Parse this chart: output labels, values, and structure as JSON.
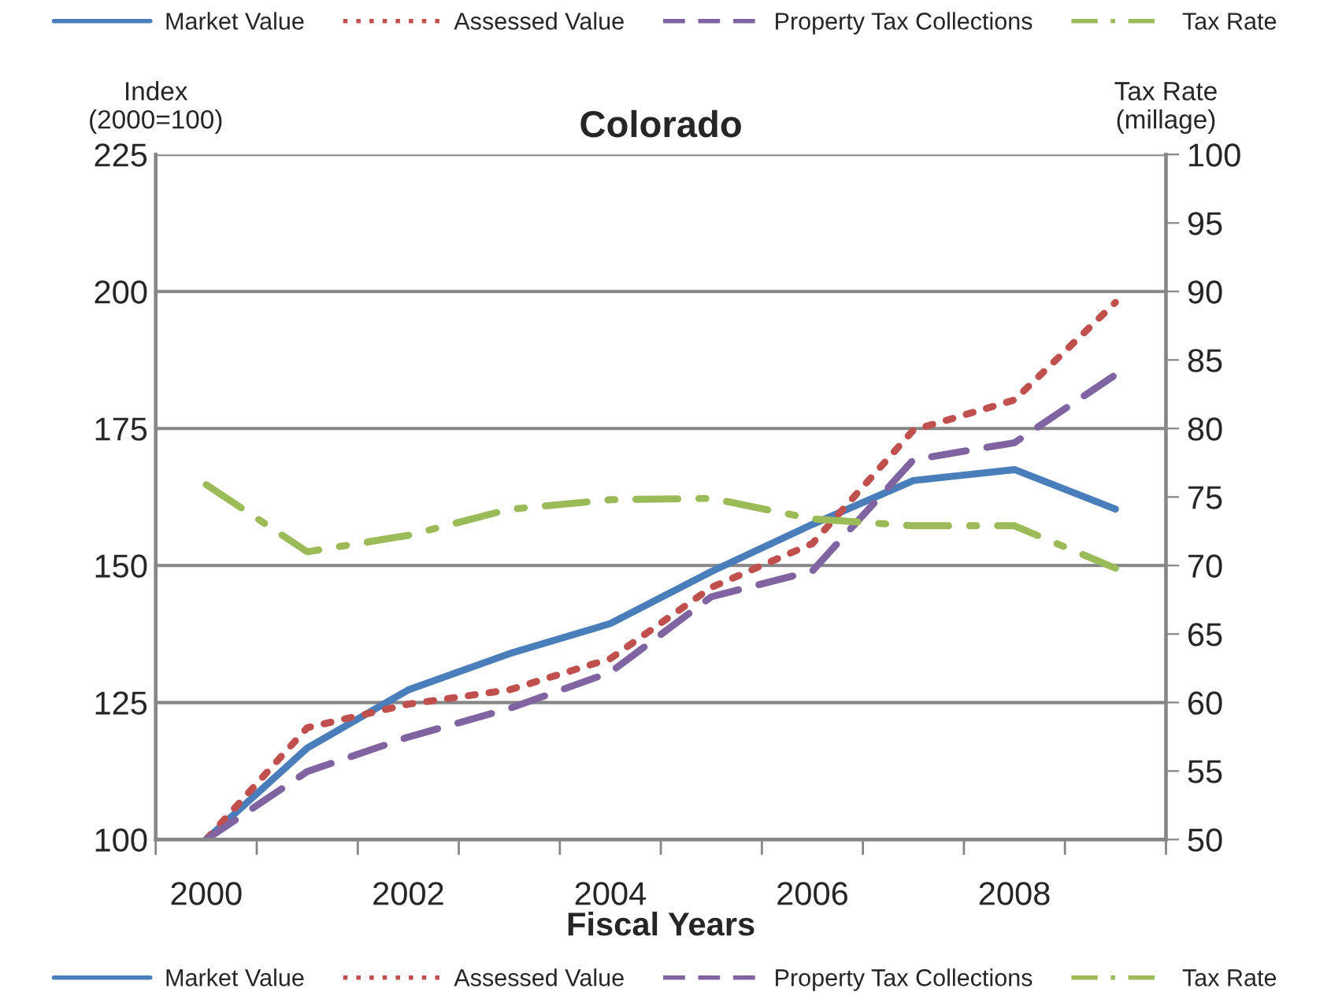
{
  "chart_data": {
    "type": "line",
    "title": "Colorado",
    "xlabel": "Fiscal Years",
    "ylabel": "Index\n(2000=100)",
    "y2label": "Tax Rate\n(millage)",
    "x": [
      2000,
      2001,
      2002,
      2003,
      2004,
      2005,
      2006,
      2007,
      2008,
      2009
    ],
    "series": [
      {
        "name": "Market Value",
        "color": "#4a7ebb",
        "line_style": "solid",
        "values": [
          100,
          116.7,
          127.3,
          133.9,
          139.4,
          148.9,
          157.5,
          165.5,
          167.5,
          160.3
        ]
      },
      {
        "name": "Assessed Value",
        "color": "#c0504d",
        "line_style": "dotted",
        "values": [
          100,
          120.4,
          124.7,
          127.3,
          133,
          146,
          154,
          174.7,
          180.2,
          198
        ]
      },
      {
        "name": "Property Tax Collections",
        "color": "#8064a2",
        "line_style": "dashed",
        "values": [
          100,
          112.4,
          118.7,
          123.9,
          130.5,
          144.3,
          149,
          169.3,
          172.4,
          184.8
        ]
      },
      {
        "name": "Tax Rate",
        "color": "#9bbb59",
        "line_style": "dashdot",
        "axis": "y2",
        "values": [
          75.9,
          71,
          72.2,
          74.1,
          74.8,
          74.9,
          73.4,
          72.9,
          72.9,
          69.8
        ]
      }
    ],
    "xlim": [
      1999.5,
      2009.5
    ],
    "xticks": [
      {
        "value": 1999.5,
        "label": null
      },
      2000,
      {
        "value": 2000.5,
        "label": null
      },
      {
        "value": 2001.5,
        "label": null
      },
      2002,
      {
        "value": 2002.5,
        "label": null
      },
      {
        "value": 2003.5,
        "label": null
      },
      2004,
      {
        "value": 2004.5,
        "label": null
      },
      {
        "value": 2005.5,
        "label": null
      },
      2006,
      {
        "value": 2006.5,
        "label": null
      },
      {
        "value": 2007.5,
        "label": null
      },
      2008,
      {
        "value": 2008.5,
        "label": null
      },
      {
        "value": 2009.5,
        "label": null
      }
    ],
    "ylim": [
      100,
      225
    ],
    "yticks": [
      100,
      125,
      150,
      175,
      200,
      225
    ],
    "y2lim": [
      50,
      100
    ],
    "y2ticks": [
      50,
      55,
      60,
      65,
      70,
      75,
      80,
      85,
      90,
      95,
      100
    ],
    "grid": "y",
    "legend": [
      "top",
      "bottom"
    ],
    "marker": "none"
  }
}
